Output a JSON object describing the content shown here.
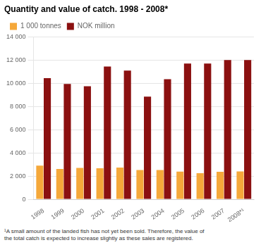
{
  "chart_data": {
    "type": "bar",
    "title": "Quantity and value of catch. 1998 - 2008*",
    "categories": [
      "1998",
      "1999",
      "2000",
      "2001",
      "2002",
      "2003",
      "2004",
      "2005",
      "2006",
      "2007",
      "2008*¹"
    ],
    "series": [
      {
        "name": "1 000 tonnes",
        "color": "#F5A83A",
        "values": [
          2900,
          2620,
          2700,
          2680,
          2730,
          2530,
          2530,
          2390,
          2250,
          2380,
          2410
        ]
      },
      {
        "name": "NOK million",
        "color": "#8B1010",
        "values": [
          10450,
          9950,
          9750,
          11450,
          11100,
          8850,
          10350,
          11700,
          11700,
          12000,
          12000
        ]
      }
    ],
    "ylim": [
      0,
      14000
    ],
    "yticks": [
      0,
      {
        "value": 2000,
        "label": "2 000"
      },
      {
        "value": 4000,
        "label": "4 000"
      },
      {
        "value": 6000,
        "label": "6 000"
      },
      {
        "value": 8000,
        "label": "8 000"
      },
      {
        "value": 10000,
        "label": "10 000"
      },
      {
        "value": 12000,
        "label": "12 000"
      },
      {
        "value": 14000,
        "label": "14 000"
      }
    ],
    "grid": true,
    "legend": "top-left",
    "annotations": [
      "¹A small amount of the landed fish has not yet been sold. Therefore, the value of\nthe total catch is expected to increase slightly as these sales are registered."
    ]
  }
}
